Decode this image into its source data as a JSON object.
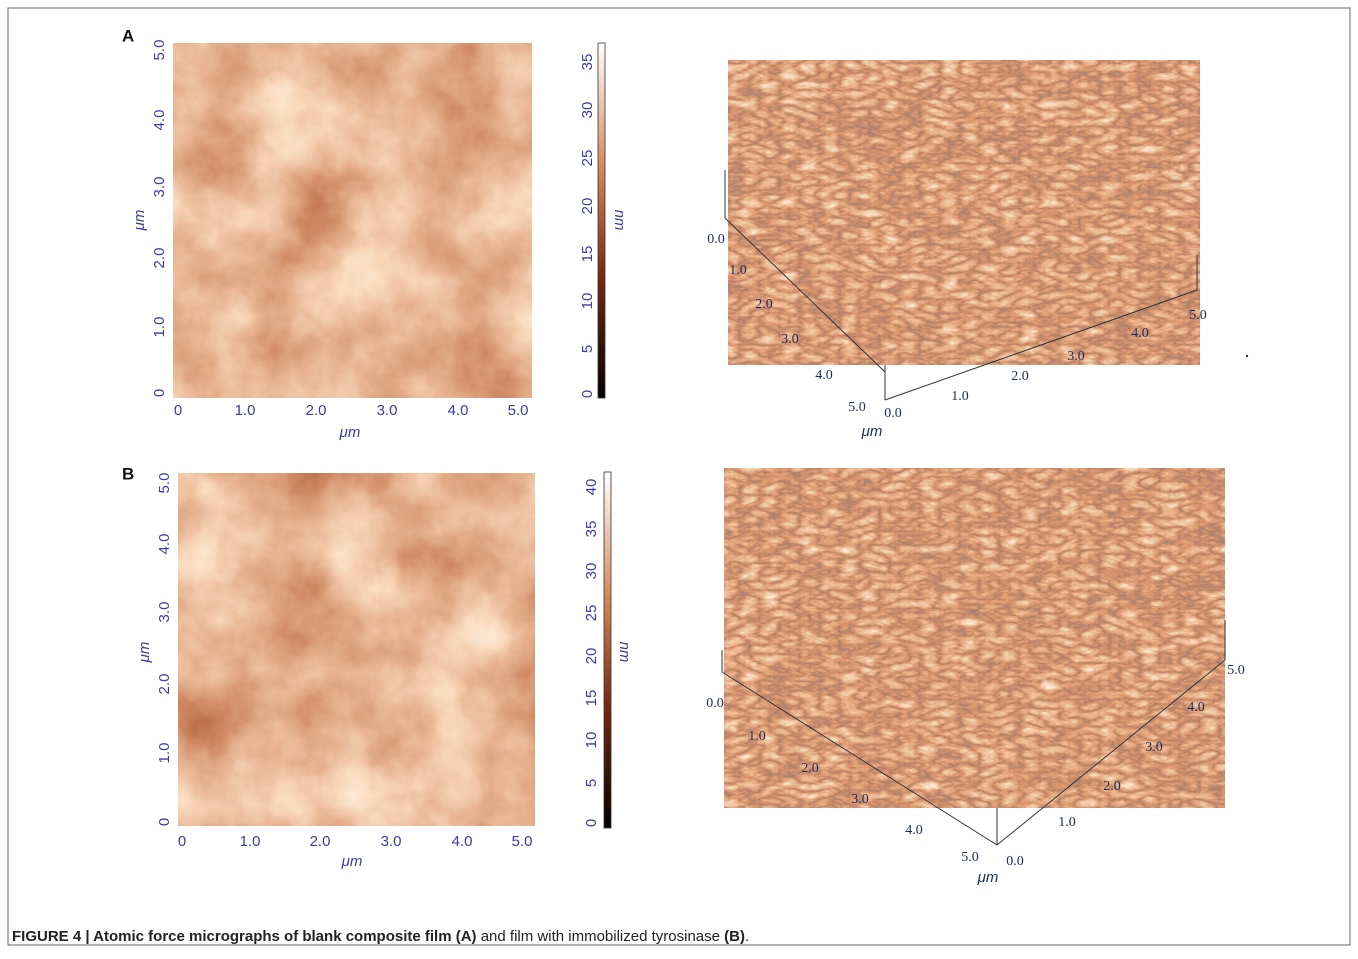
{
  "panels": [
    {
      "label": "A",
      "map": {
        "x_ticks": [
          "0",
          "1.0",
          "2.0",
          "3.0",
          "4.0",
          "5.0"
        ],
        "y_ticks": [
          "0",
          "1.0",
          "2.0",
          "3.0",
          "4.0",
          "5.0"
        ],
        "x_label": "μm",
        "y_label": "μm"
      },
      "colorbar": {
        "ticks": [
          "0",
          "5",
          "10",
          "15",
          "20",
          "25",
          "30",
          "35"
        ],
        "label": "nm"
      },
      "surface": {
        "depth_ticks": [
          "0.0",
          "1.0",
          "2.0",
          "3.0",
          "4.0",
          "5.0"
        ],
        "width_ticks": [
          "0.0",
          "1.0",
          "2.0",
          "3.0",
          "4.0",
          "5.0"
        ],
        "label": "μm"
      }
    },
    {
      "label": "B",
      "map": {
        "x_ticks": [
          "0",
          "1.0",
          "2.0",
          "3.0",
          "4.0",
          "5.0"
        ],
        "y_ticks": [
          "0",
          "1.0",
          "2.0",
          "3.0",
          "4.0",
          "5.0"
        ],
        "x_label": "μm",
        "y_label": "μm"
      },
      "colorbar": {
        "ticks": [
          "0",
          "5",
          "10",
          "15",
          "20",
          "25",
          "30",
          "35",
          "40"
        ],
        "label": "nm"
      },
      "surface": {
        "depth_ticks": [
          "0.0",
          "1.0",
          "2.0",
          "3.0",
          "4.0",
          "5.0"
        ],
        "width_ticks": [
          "0.0",
          "1.0",
          "2.0",
          "3.0",
          "4.0",
          "5.0"
        ],
        "label": "μm"
      }
    }
  ],
  "caption": {
    "parts": [
      {
        "text": "FIGURE 4 | Atomic force micrographs of blank composite film (A)",
        "bold": true
      },
      {
        "text": " and film with immobilized tyrosinase ",
        "bold": false
      },
      {
        "text": "(B)",
        "bold": true
      },
      {
        "text": ".",
        "bold": false
      }
    ]
  }
}
